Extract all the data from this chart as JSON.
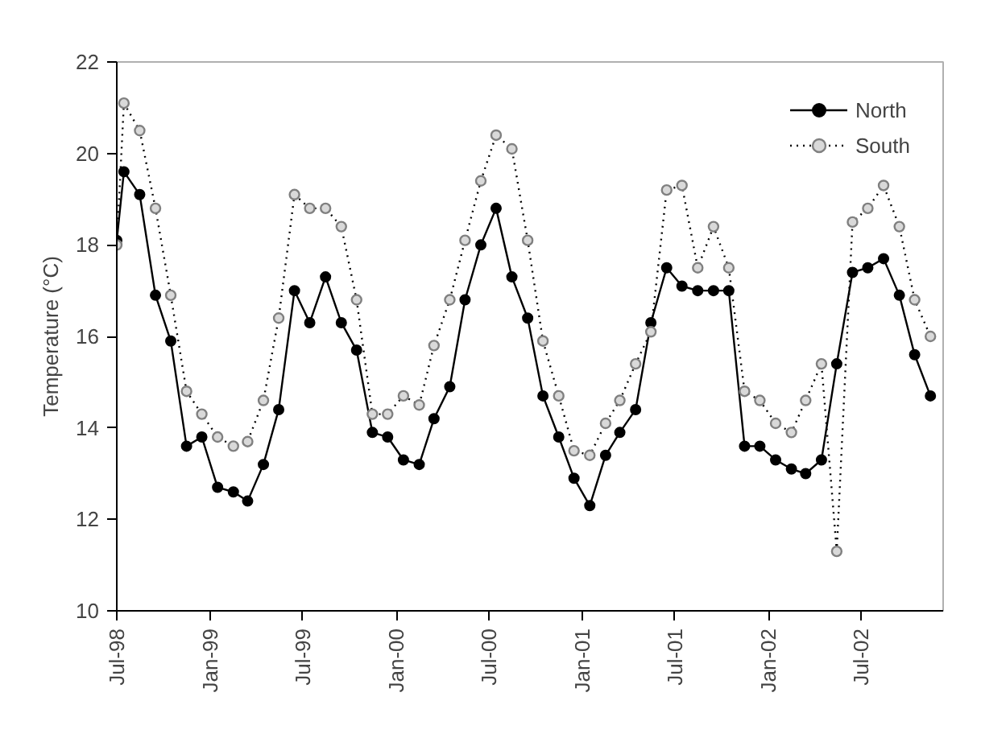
{
  "chart_data": {
    "type": "line",
    "ylabel": "Temperature (°C)",
    "x": [
      "1998-07-01",
      "1998-07-15",
      "1998-08-15",
      "1998-09-15",
      "1998-10-15",
      "1998-11-15",
      "1998-12-15",
      "1999-01-15",
      "1999-02-15",
      "1999-03-15",
      "1999-04-15",
      "1999-05-15",
      "1999-06-15",
      "1999-07-15",
      "1999-08-15",
      "1999-09-15",
      "1999-10-15",
      "1999-11-15",
      "1999-12-15",
      "2000-01-15",
      "2000-02-15",
      "2000-03-15",
      "2000-04-15",
      "2000-05-15",
      "2000-06-15",
      "2000-07-15",
      "2000-08-15",
      "2000-09-15",
      "2000-10-15",
      "2000-11-15",
      "2000-12-15",
      "2001-01-15",
      "2001-02-15",
      "2001-03-15",
      "2001-04-15",
      "2001-05-15",
      "2001-06-15",
      "2001-07-15",
      "2001-08-15",
      "2001-09-15",
      "2001-10-15",
      "2001-11-15",
      "2001-12-15",
      "2002-01-15",
      "2002-02-15",
      "2002-03-15",
      "2002-04-15",
      "2002-05-15",
      "2002-06-15",
      "2002-07-15",
      "2002-08-15",
      "2002-09-15",
      "2002-10-15",
      "2002-11-15"
    ],
    "series": [
      {
        "name": "North",
        "color": "#000000",
        "marker": "circle",
        "line_style": "solid",
        "values": [
          18.1,
          19.6,
          19.1,
          16.9,
          15.9,
          13.6,
          13.8,
          12.7,
          12.6,
          12.4,
          13.2,
          14.4,
          17.0,
          16.3,
          17.3,
          16.3,
          15.7,
          13.9,
          13.8,
          13.3,
          13.2,
          14.2,
          14.9,
          16.8,
          18.0,
          18.8,
          17.3,
          16.4,
          14.7,
          13.8,
          12.9,
          12.3,
          13.4,
          13.9,
          14.4,
          16.3,
          17.5,
          17.1,
          17.0,
          17.0,
          17.0,
          13.6,
          13.6,
          13.3,
          13.1,
          13.0,
          13.3,
          15.4,
          17.4,
          17.5,
          17.7,
          16.9,
          15.6,
          14.7
        ]
      },
      {
        "name": "South",
        "color": "#808080",
        "marker": "circle",
        "line_style": "dotted",
        "values": [
          18.0,
          21.1,
          20.5,
          18.8,
          16.9,
          14.8,
          14.3,
          13.8,
          13.6,
          13.7,
          14.6,
          16.4,
          19.1,
          18.8,
          18.8,
          18.4,
          16.8,
          14.3,
          14.3,
          14.7,
          14.5,
          15.8,
          16.8,
          18.1,
          19.4,
          20.4,
          20.1,
          18.1,
          15.9,
          14.7,
          13.5,
          13.4,
          14.1,
          14.6,
          15.4,
          16.1,
          19.2,
          19.3,
          17.5,
          18.4,
          17.5,
          14.8,
          14.6,
          14.1,
          13.9,
          14.6,
          15.4,
          11.3,
          18.5,
          18.8,
          19.3,
          18.4,
          16.8,
          16.0
        ]
      }
    ],
    "xlim": [
      "1998-07-01",
      "2002-12-10"
    ],
    "xticks": [
      {
        "value": "1998-07-01",
        "label": "Jul-98"
      },
      {
        "value": "1999-01-01",
        "label": "Jan-99"
      },
      {
        "value": "1999-07-01",
        "label": "Jul-99"
      },
      {
        "value": "2000-01-01",
        "label": "Jan-00"
      },
      {
        "value": "2000-07-01",
        "label": "Jul-00"
      },
      {
        "value": "2001-01-01",
        "label": "Jan-01"
      },
      {
        "value": "2001-07-01",
        "label": "Jul-01"
      },
      {
        "value": "2002-01-01",
        "label": "Jan-02"
      },
      {
        "value": "2002-07-01",
        "label": "Jul-02"
      }
    ],
    "ylim": [
      10,
      22
    ],
    "yticks": [
      10,
      12,
      14,
      16,
      18,
      20,
      22
    ],
    "grid": false,
    "legend": "top right"
  }
}
